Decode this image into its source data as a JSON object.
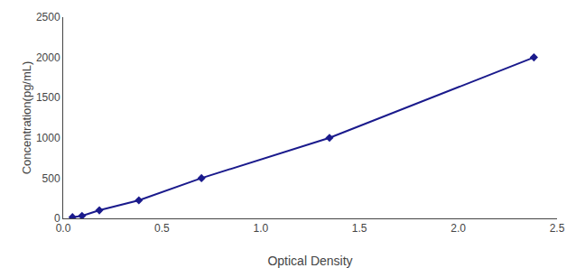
{
  "chart_data": {
    "type": "line",
    "x": [
      0.047,
      0.095,
      0.183,
      0.383,
      0.7,
      1.348,
      2.383
    ],
    "values": [
      15,
      31,
      100,
      225,
      500,
      1000,
      2000
    ],
    "color": "#1a1a8c",
    "marker": "diamond",
    "line_style": "solid",
    "xlabel": "Optical Density",
    "ylabel": "Concentration(pg/mL)",
    "xlim": [
      0,
      2.5
    ],
    "ylim": [
      0,
      2500
    ],
    "xticks": [
      {
        "value": 0,
        "label": "0.0"
      },
      {
        "value": 0.5,
        "label": "0.5"
      },
      {
        "value": 1,
        "label": "1.0"
      },
      {
        "value": 1.5,
        "label": "1.5"
      },
      {
        "value": 2,
        "label": "2.0"
      },
      {
        "value": 2.5,
        "label": "2.5"
      }
    ],
    "yticks": [
      0,
      500,
      1000,
      1500,
      2000,
      2500
    ],
    "grid": false
  }
}
